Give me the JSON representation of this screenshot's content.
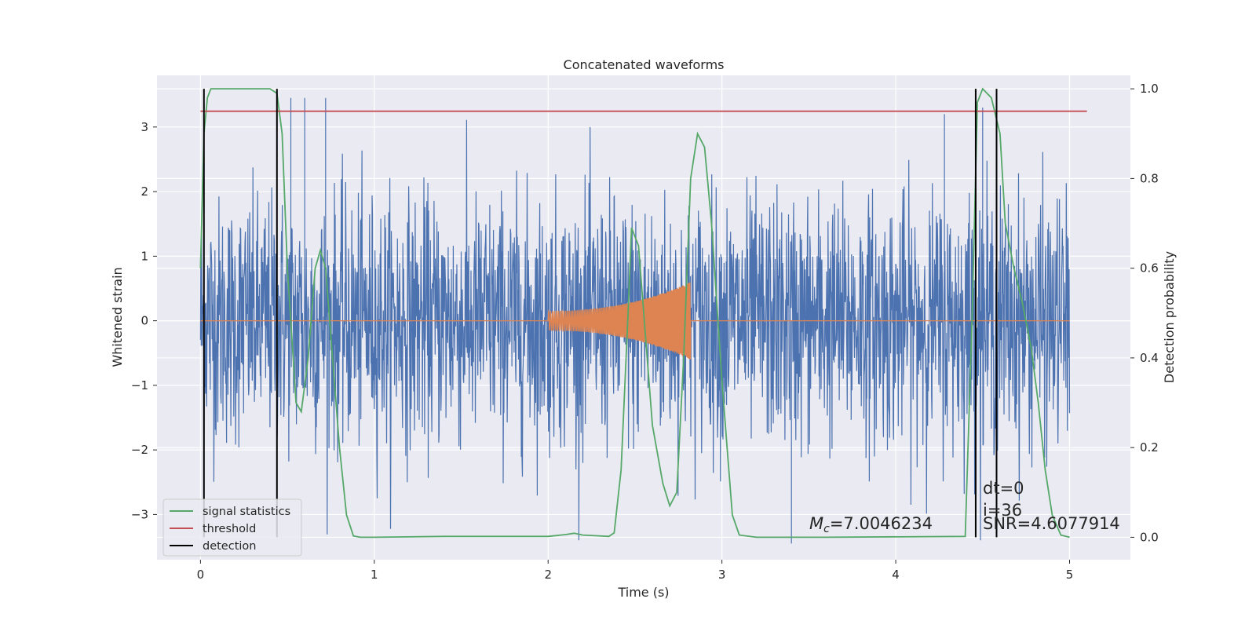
{
  "chart_data": {
    "type": "line",
    "title": "Concatenated waveforms",
    "xlabel": "Time (s)",
    "ylabel": "Whitened strain",
    "ylabel_right": "Detection probability",
    "xlim": [
      -0.25,
      5.35
    ],
    "ylim": [
      -3.7,
      3.8
    ],
    "ylim_right": [
      -0.05,
      1.03
    ],
    "xticks": [
      0,
      1,
      2,
      3,
      4,
      5
    ],
    "xtick_labels": [
      "0",
      "1",
      "2",
      "3",
      "4",
      "5"
    ],
    "yticks": [
      -3,
      -2,
      -1,
      0,
      1,
      2,
      3
    ],
    "ytick_labels": [
      "−3",
      "−2",
      "−1",
      "0",
      "1",
      "2",
      "3"
    ],
    "yticks_right": [
      0.0,
      0.2,
      0.4,
      0.6,
      0.8,
      1.0
    ],
    "ytick_labels_right": [
      "0.0",
      "0.2",
      "0.4",
      "0.6",
      "0.8",
      "1.0"
    ],
    "grid": true,
    "legend_position": "lower-left",
    "legend": [
      {
        "label": "signal statistics",
        "color": "#55a868"
      },
      {
        "label": "threshold",
        "color": "#c44e52"
      },
      {
        "label": "detection",
        "color": "#000000"
      }
    ],
    "strain_noise": {
      "color": "#4c72b0",
      "x_range": [
        0.0,
        5.0
      ],
      "envelope_peak": 3.4,
      "typical_range": [
        -2.2,
        2.2
      ],
      "note_points": [
        {
          "x": 0.52,
          "y": 3.45
        },
        {
          "x": 0.6,
          "y": 3.45
        },
        {
          "x": 0.72,
          "y": 3.45
        },
        {
          "x": 3.4,
          "y": -3.45
        },
        {
          "x": 4.28,
          "y": 3.2
        },
        {
          "x": 4.5,
          "y": 3.3
        }
      ]
    },
    "waveform": {
      "color": "#dd8452",
      "x_range": [
        2.0,
        2.82
      ],
      "amplitude_start": 0.15,
      "amplitude_end": 0.6
    },
    "series": [
      {
        "name": "signal statistics",
        "color": "#55a868",
        "axis": "right",
        "x": [
          0.0,
          0.02,
          0.04,
          0.06,
          0.1,
          0.2,
          0.3,
          0.4,
          0.44,
          0.47,
          0.5,
          0.55,
          0.58,
          0.62,
          0.66,
          0.69,
          0.72,
          0.76,
          0.8,
          0.84,
          0.88,
          0.92,
          1.0,
          1.4,
          2.0,
          2.1,
          2.15,
          2.2,
          2.35,
          2.38,
          2.42,
          2.46,
          2.48,
          2.52,
          2.56,
          2.6,
          2.66,
          2.7,
          2.74,
          2.78,
          2.82,
          2.86,
          2.9,
          2.94,
          3.0,
          3.06,
          3.1,
          3.2,
          3.6,
          4.4,
          4.44,
          4.47,
          4.5,
          4.55,
          4.6,
          4.63,
          4.68,
          4.73,
          4.78,
          4.82,
          4.86,
          4.9,
          4.95,
          5.0
        ],
        "y": [
          0.6,
          0.9,
          0.98,
          1.0,
          1.0,
          1.0,
          1.0,
          1.0,
          0.99,
          0.9,
          0.6,
          0.3,
          0.28,
          0.4,
          0.6,
          0.64,
          0.6,
          0.4,
          0.2,
          0.05,
          0.003,
          0.0,
          0.0,
          0.002,
          0.002,
          0.006,
          0.009,
          0.005,
          0.002,
          0.01,
          0.15,
          0.5,
          0.69,
          0.65,
          0.45,
          0.25,
          0.12,
          0.07,
          0.1,
          0.4,
          0.8,
          0.9,
          0.87,
          0.7,
          0.35,
          0.05,
          0.005,
          0.0,
          0.0,
          0.002,
          0.5,
          0.97,
          1.0,
          0.98,
          0.9,
          0.7,
          0.6,
          0.52,
          0.42,
          0.3,
          0.15,
          0.05,
          0.005,
          0.0
        ]
      },
      {
        "name": "threshold",
        "color": "#c44e52",
        "axis": "right",
        "x": [
          0.0,
          5.1
        ],
        "y": [
          0.95,
          0.95
        ]
      }
    ],
    "detections": [
      {
        "x": 0.02,
        "y_range": [
          0.0,
          1.0
        ]
      },
      {
        "x": 0.44,
        "y_range": [
          0.0,
          1.0
        ]
      },
      {
        "x": 4.46,
        "y_range": [
          0.0,
          1.0
        ]
      },
      {
        "x": 4.58,
        "y_range": [
          0.0,
          1.0
        ]
      }
    ],
    "annotations": [
      {
        "text": "dt=0",
        "x": 4.5,
        "y": -2.6
      },
      {
        "text": "i=36",
        "x": 4.5,
        "y": -2.95
      },
      {
        "text": "SNR=4.6077914",
        "x": 4.5,
        "y": -3.3
      },
      {
        "text_italic": "M",
        "text_sub": "c",
        "text": "=7.0046234",
        "x": 3.5,
        "y": -3.3
      }
    ]
  }
}
